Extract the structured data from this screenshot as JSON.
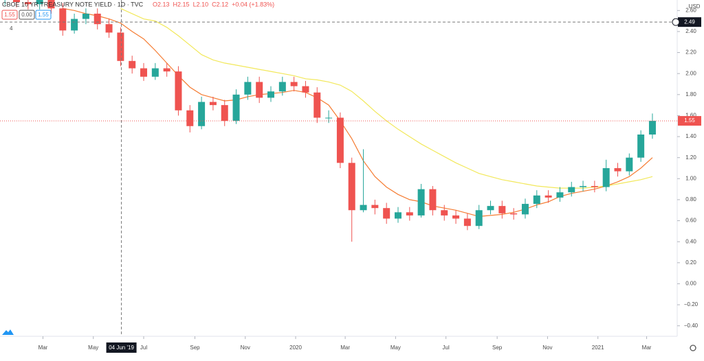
{
  "chart_data": {
    "type": "candlestick",
    "title": "CBOE 10 YR TREASURY NOTE YIELD · 1D · TVC",
    "legend_values": [
      "O2.13",
      "H2.15",
      "L2.10",
      "C2.12",
      "+0.04 (+1.83%)"
    ],
    "badges": [
      "1.55",
      "0.00",
      "1.55"
    ],
    "indicator_count": "4",
    "currency": "USD",
    "up_color": "#26a69a",
    "down_color": "#ef5350",
    "x": [
      "2019-01-14",
      "2019-01-28",
      "2019-02-11",
      "2019-02-25",
      "2019-03-11",
      "2019-03-25",
      "2019-04-08",
      "2019-04-22",
      "2019-05-06",
      "2019-05-20",
      "2019-06-03",
      "2019-06-17",
      "2019-07-01",
      "2019-07-15",
      "2019-07-29",
      "2019-08-12",
      "2019-08-26",
      "2019-09-09",
      "2019-09-23",
      "2019-10-07",
      "2019-10-21",
      "2019-11-04",
      "2019-11-18",
      "2019-12-02",
      "2019-12-16",
      "2019-12-30",
      "2020-01-13",
      "2020-01-27",
      "2020-02-10",
      "2020-02-24",
      "2020-03-09",
      "2020-03-23",
      "2020-04-06",
      "2020-04-20",
      "2020-05-04",
      "2020-05-18",
      "2020-06-01",
      "2020-06-15",
      "2020-06-29",
      "2020-07-13",
      "2020-07-27",
      "2020-08-10",
      "2020-08-24",
      "2020-09-07",
      "2020-09-21",
      "2020-10-05",
      "2020-10-19",
      "2020-11-02",
      "2020-11-16",
      "2020-11-30",
      "2020-12-14",
      "2020-12-28",
      "2021-01-11",
      "2021-01-25",
      "2021-02-08",
      "2021-02-22",
      "2021-03-08"
    ],
    "open": [
      2.7,
      2.72,
      2.68,
      2.66,
      2.72,
      2.62,
      2.41,
      2.52,
      2.57,
      2.47,
      2.39,
      2.12,
      2.05,
      1.97,
      2.05,
      2.02,
      1.65,
      1.5,
      1.73,
      1.7,
      1.55,
      1.8,
      1.92,
      1.77,
      1.83,
      1.92,
      1.88,
      1.82,
      1.58,
      1.58,
      1.15,
      0.7,
      0.75,
      0.72,
      0.62,
      0.68,
      0.65,
      0.9,
      0.7,
      0.65,
      0.62,
      0.55,
      0.7,
      0.74,
      0.67,
      0.66,
      0.76,
      0.84,
      0.82,
      0.87,
      0.92,
      0.93,
      0.92,
      1.1,
      1.07,
      1.2,
      1.42
    ],
    "high": [
      2.77,
      2.77,
      2.73,
      2.77,
      2.77,
      2.67,
      2.57,
      2.62,
      2.62,
      2.52,
      2.44,
      2.17,
      2.1,
      2.1,
      2.1,
      2.07,
      1.7,
      1.78,
      1.78,
      1.75,
      1.85,
      1.97,
      1.97,
      1.88,
      1.97,
      1.97,
      1.93,
      1.87,
      1.65,
      1.63,
      1.2,
      1.28,
      0.8,
      0.77,
      0.73,
      0.73,
      0.95,
      0.93,
      0.75,
      0.7,
      0.67,
      0.75,
      0.79,
      0.79,
      0.72,
      0.81,
      0.89,
      0.89,
      0.92,
      0.97,
      0.98,
      0.98,
      1.18,
      1.15,
      1.24,
      1.46,
      1.62
    ],
    "low": [
      2.65,
      2.63,
      2.61,
      2.61,
      2.57,
      2.36,
      2.38,
      2.47,
      2.42,
      2.34,
      2.07,
      2.0,
      1.93,
      1.94,
      1.97,
      1.6,
      1.44,
      1.47,
      1.65,
      1.5,
      1.52,
      1.75,
      1.72,
      1.73,
      1.79,
      1.83,
      1.77,
      1.53,
      1.53,
      1.1,
      0.4,
      0.68,
      0.66,
      0.57,
      0.58,
      0.6,
      0.63,
      0.65,
      0.6,
      0.57,
      0.51,
      0.52,
      0.66,
      0.62,
      0.61,
      0.62,
      0.72,
      0.77,
      0.78,
      0.83,
      0.88,
      0.87,
      0.88,
      1.02,
      1.03,
      1.16,
      1.38
    ],
    "close": [
      2.72,
      2.68,
      2.66,
      2.72,
      2.62,
      2.41,
      2.52,
      2.57,
      2.47,
      2.39,
      2.12,
      2.05,
      1.97,
      2.05,
      2.02,
      1.65,
      1.5,
      1.73,
      1.7,
      1.55,
      1.8,
      1.92,
      1.77,
      1.83,
      1.92,
      1.88,
      1.82,
      1.58,
      1.58,
      1.15,
      0.7,
      0.75,
      0.72,
      0.62,
      0.68,
      0.65,
      0.9,
      0.7,
      0.65,
      0.62,
      0.55,
      0.7,
      0.74,
      0.67,
      0.66,
      0.76,
      0.84,
      0.82,
      0.87,
      0.92,
      0.93,
      0.92,
      1.1,
      1.07,
      1.2,
      1.42,
      1.55
    ],
    "lines": [
      {
        "color": "#f57c32",
        "values": [
          null,
          null,
          null,
          null,
          null,
          2.62,
          2.6,
          2.57,
          2.55,
          2.52,
          2.48,
          2.4,
          2.33,
          2.22,
          2.1,
          1.98,
          1.87,
          1.8,
          1.77,
          1.74,
          1.75,
          1.78,
          1.8,
          1.81,
          1.82,
          1.84,
          1.82,
          1.77,
          1.7,
          1.55,
          1.38,
          1.17,
          1.02,
          0.92,
          0.85,
          0.8,
          0.78,
          0.74,
          0.72,
          0.7,
          0.67,
          0.64,
          0.65,
          0.66,
          0.68,
          0.71,
          0.75,
          0.78,
          0.83,
          0.86,
          0.88,
          0.9,
          0.93,
          0.97,
          1.02,
          1.1,
          1.2
        ]
      },
      {
        "color": "#f2e85a",
        "values": [
          null,
          null,
          null,
          null,
          null,
          null,
          null,
          null,
          null,
          null,
          2.62,
          2.57,
          2.52,
          2.5,
          2.44,
          2.36,
          2.27,
          2.18,
          2.13,
          2.1,
          2.08,
          2.06,
          2.04,
          2.02,
          2.0,
          1.98,
          1.95,
          1.94,
          1.92,
          1.89,
          1.83,
          1.74,
          1.64,
          1.55,
          1.47,
          1.4,
          1.33,
          1.27,
          1.21,
          1.15,
          1.1,
          1.05,
          1.02,
          0.99,
          0.97,
          0.95,
          0.93,
          0.92,
          0.91,
          0.91,
          0.91,
          0.92,
          0.93,
          0.95,
          0.97,
          0.99,
          1.02
        ]
      }
    ],
    "xlim": [
      "2019-01-08",
      "2021-04-07"
    ],
    "xticks": [
      {
        "value": "2019-03-01",
        "label": "Mar"
      },
      {
        "value": "2019-05-01",
        "label": "May"
      },
      {
        "value": "2019-07-01",
        "label": "Jul"
      },
      {
        "value": "2019-09-01",
        "label": "Sep"
      },
      {
        "value": "2019-11-01",
        "label": "Nov"
      },
      {
        "value": "2020-01-01",
        "label": "2020"
      },
      {
        "value": "2020-03-01",
        "label": "Mar"
      },
      {
        "value": "2020-05-01",
        "label": "May"
      },
      {
        "value": "2020-07-01",
        "label": "Jul"
      },
      {
        "value": "2020-09-01",
        "label": "Sep"
      },
      {
        "value": "2020-11-01",
        "label": "Nov"
      },
      {
        "value": "2021-01-01",
        "label": "2021"
      },
      {
        "value": "2021-03-01",
        "label": "Mar"
      }
    ],
    "ylim": [
      -0.5,
      2.7
    ],
    "yticks": [
      {
        "value": 2.6,
        "label": "2.60"
      },
      {
        "value": 2.4,
        "label": "2.40"
      },
      {
        "value": 2.2,
        "label": "2.20"
      },
      {
        "value": 2,
        "label": "2.00"
      },
      {
        "value": 1.8,
        "label": "1.80"
      },
      {
        "value": 1.6,
        "label": "1.60"
      },
      {
        "value": 1.4,
        "label": "1.40"
      },
      {
        "value": 1.2,
        "label": "1.20"
      },
      {
        "value": 1,
        "label": "1.00"
      },
      {
        "value": 0.8,
        "label": "0.80"
      },
      {
        "value": 0.6,
        "label": "0.60"
      },
      {
        "value": 0.4,
        "label": "0.40"
      },
      {
        "value": 0.2,
        "label": "0.20"
      },
      {
        "value": 0,
        "label": "0.00"
      },
      {
        "value": -0.2,
        "label": "−0.20"
      },
      {
        "value": -0.4,
        "label": "−0.40"
      }
    ],
    "last_price": {
      "value": 1.55,
      "label": "1.55"
    },
    "crosshair": {
      "x": "2019-06-04",
      "x_label": "04 Jun '19",
      "y": 2.49,
      "y_label": "2.49"
    }
  }
}
